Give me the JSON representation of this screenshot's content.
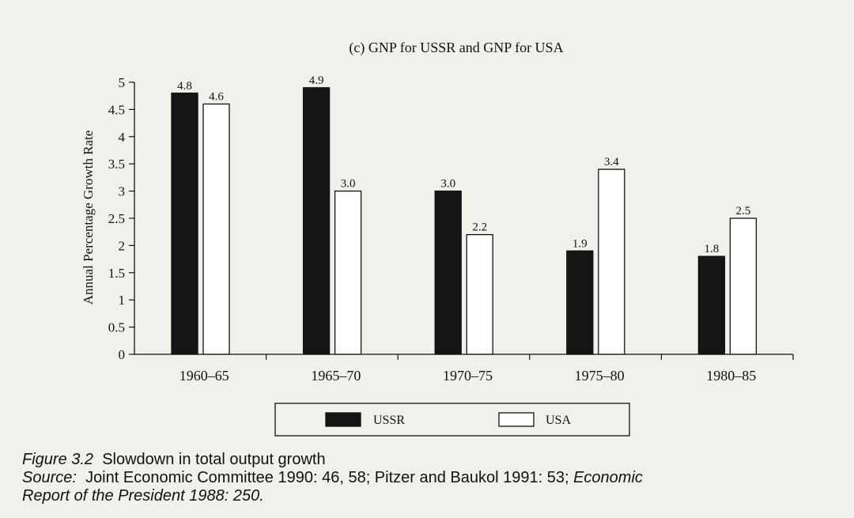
{
  "chart_data": {
    "type": "bar",
    "title": "(c) GNP for USSR and GNP for USA",
    "xlabel": "",
    "ylabel": "Annual Percentage Growth Rate",
    "ylim": [
      0,
      5
    ],
    "yticks": [
      "0",
      "0.5",
      "1",
      "1.5",
      "2",
      "2.5",
      "3",
      "3.5",
      "4",
      "4.5",
      "5"
    ],
    "categories": [
      "1960–65",
      "1965–70",
      "1970–75",
      "1975–80",
      "1980–85"
    ],
    "series": [
      {
        "name": "USSR",
        "color": "#151515",
        "values": [
          4.8,
          4.9,
          3.0,
          1.9,
          1.8
        ],
        "labels": [
          "4.8",
          "4.9",
          "3.0",
          "1.9",
          "1.8"
        ]
      },
      {
        "name": "USA",
        "color": "#ffffff",
        "values": [
          4.6,
          3.0,
          2.2,
          3.4,
          2.5
        ],
        "labels": [
          "4.6",
          "3.0",
          "2.2",
          "3.4",
          "2.5"
        ]
      }
    ],
    "grid": false,
    "legend_position": "bottom"
  },
  "caption": {
    "figure_label": "Figure 3.2",
    "figure_title": "Slowdown in total output growth",
    "source_label": "Source:",
    "source_text": "Joint Economic Committee 1990: 46, 58; Pitzer and Baukol 1991: 53;",
    "source_italic_1": "Economic",
    "source_italic_2": "Report of the President 1988: 250."
  }
}
